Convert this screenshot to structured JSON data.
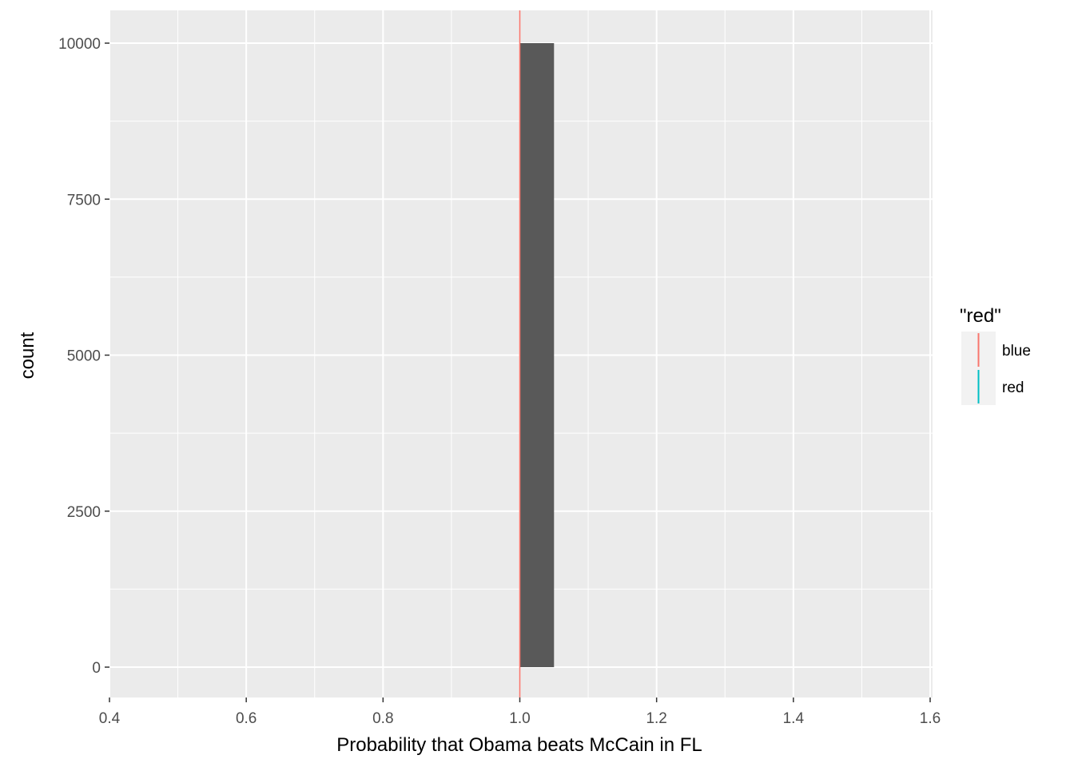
{
  "chart_data": {
    "type": "bar",
    "subtype": "histogram",
    "xlabel": "Probability that Obama beats McCain in FL",
    "ylabel": "count",
    "xlim": [
      0.4,
      1.6
    ],
    "ylim": [
      0,
      10000
    ],
    "x_ticks": [
      "0.4",
      "0.6",
      "0.8",
      "1.0",
      "1.2",
      "1.4",
      "1.6"
    ],
    "y_ticks": [
      "0",
      "2500",
      "5000",
      "7500",
      "10000"
    ],
    "bins": [
      {
        "x_start": 1.0,
        "x_end": 1.05,
        "count": 10000
      }
    ],
    "vline": {
      "x": 1.0,
      "color": "#F8766D",
      "legend_key": "blue"
    },
    "bar_color": "#595959",
    "panel_background": "#EBEBEB",
    "grid": true,
    "legend": {
      "title": "\"red\"",
      "position": "right",
      "entries": [
        {
          "label": "blue",
          "color": "#F8766D"
        },
        {
          "label": "red",
          "color": "#00BFC4"
        }
      ]
    }
  }
}
